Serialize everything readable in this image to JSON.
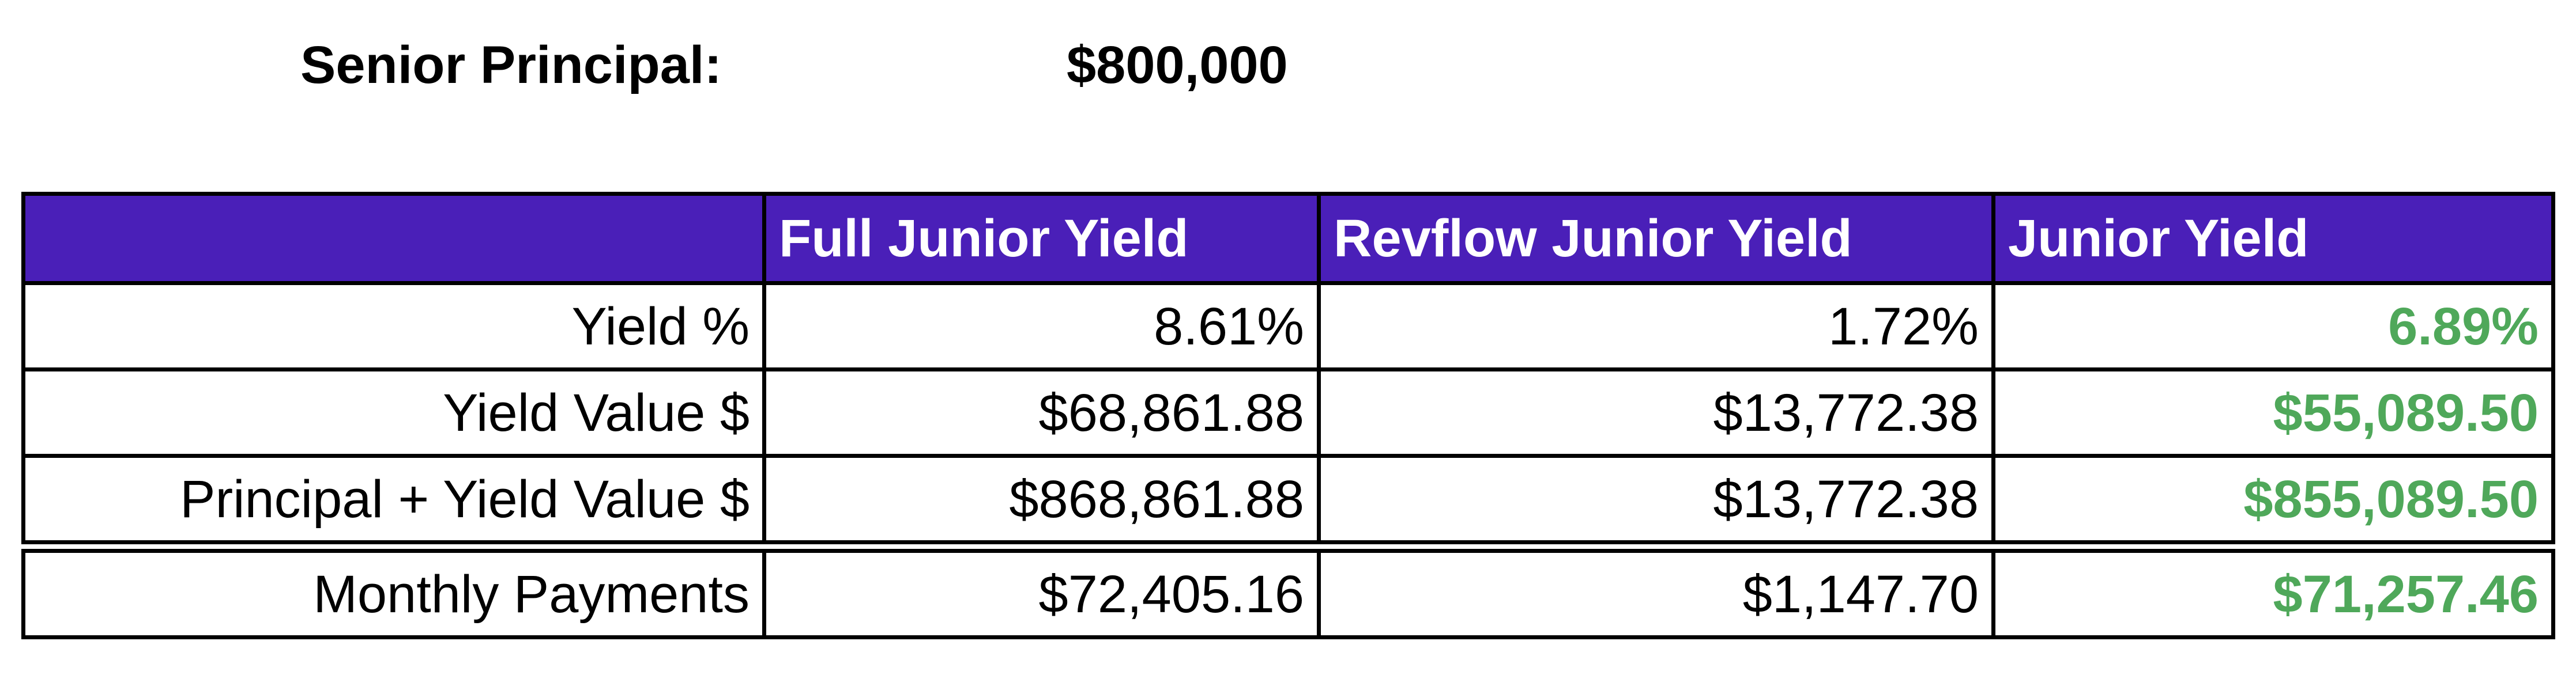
{
  "header": {
    "label": "Senior Principal:",
    "value": "$800,000"
  },
  "colors": {
    "header_background": "#4a1fb8",
    "header_text": "#ffffff",
    "junior_yield_text": "#4fa85a"
  },
  "table": {
    "columns": [
      "",
      "Full Junior Yield",
      "Revflow Junior Yield",
      "Junior Yield"
    ],
    "rows": [
      {
        "label": "Yield %",
        "full": "8.61%",
        "revflow": "1.72%",
        "junior": "6.89%"
      },
      {
        "label": "Yield Value $",
        "full": "$68,861.88",
        "revflow": "$13,772.38",
        "junior": "$55,089.50"
      },
      {
        "label": "Principal + Yield Value $",
        "full": "$868,861.88",
        "revflow": "$13,772.38",
        "junior": "$855,089.50"
      },
      {
        "label": "Monthly Payments",
        "full": "$72,405.16",
        "revflow": "$1,147.70",
        "junior": "$71,257.46"
      }
    ]
  }
}
